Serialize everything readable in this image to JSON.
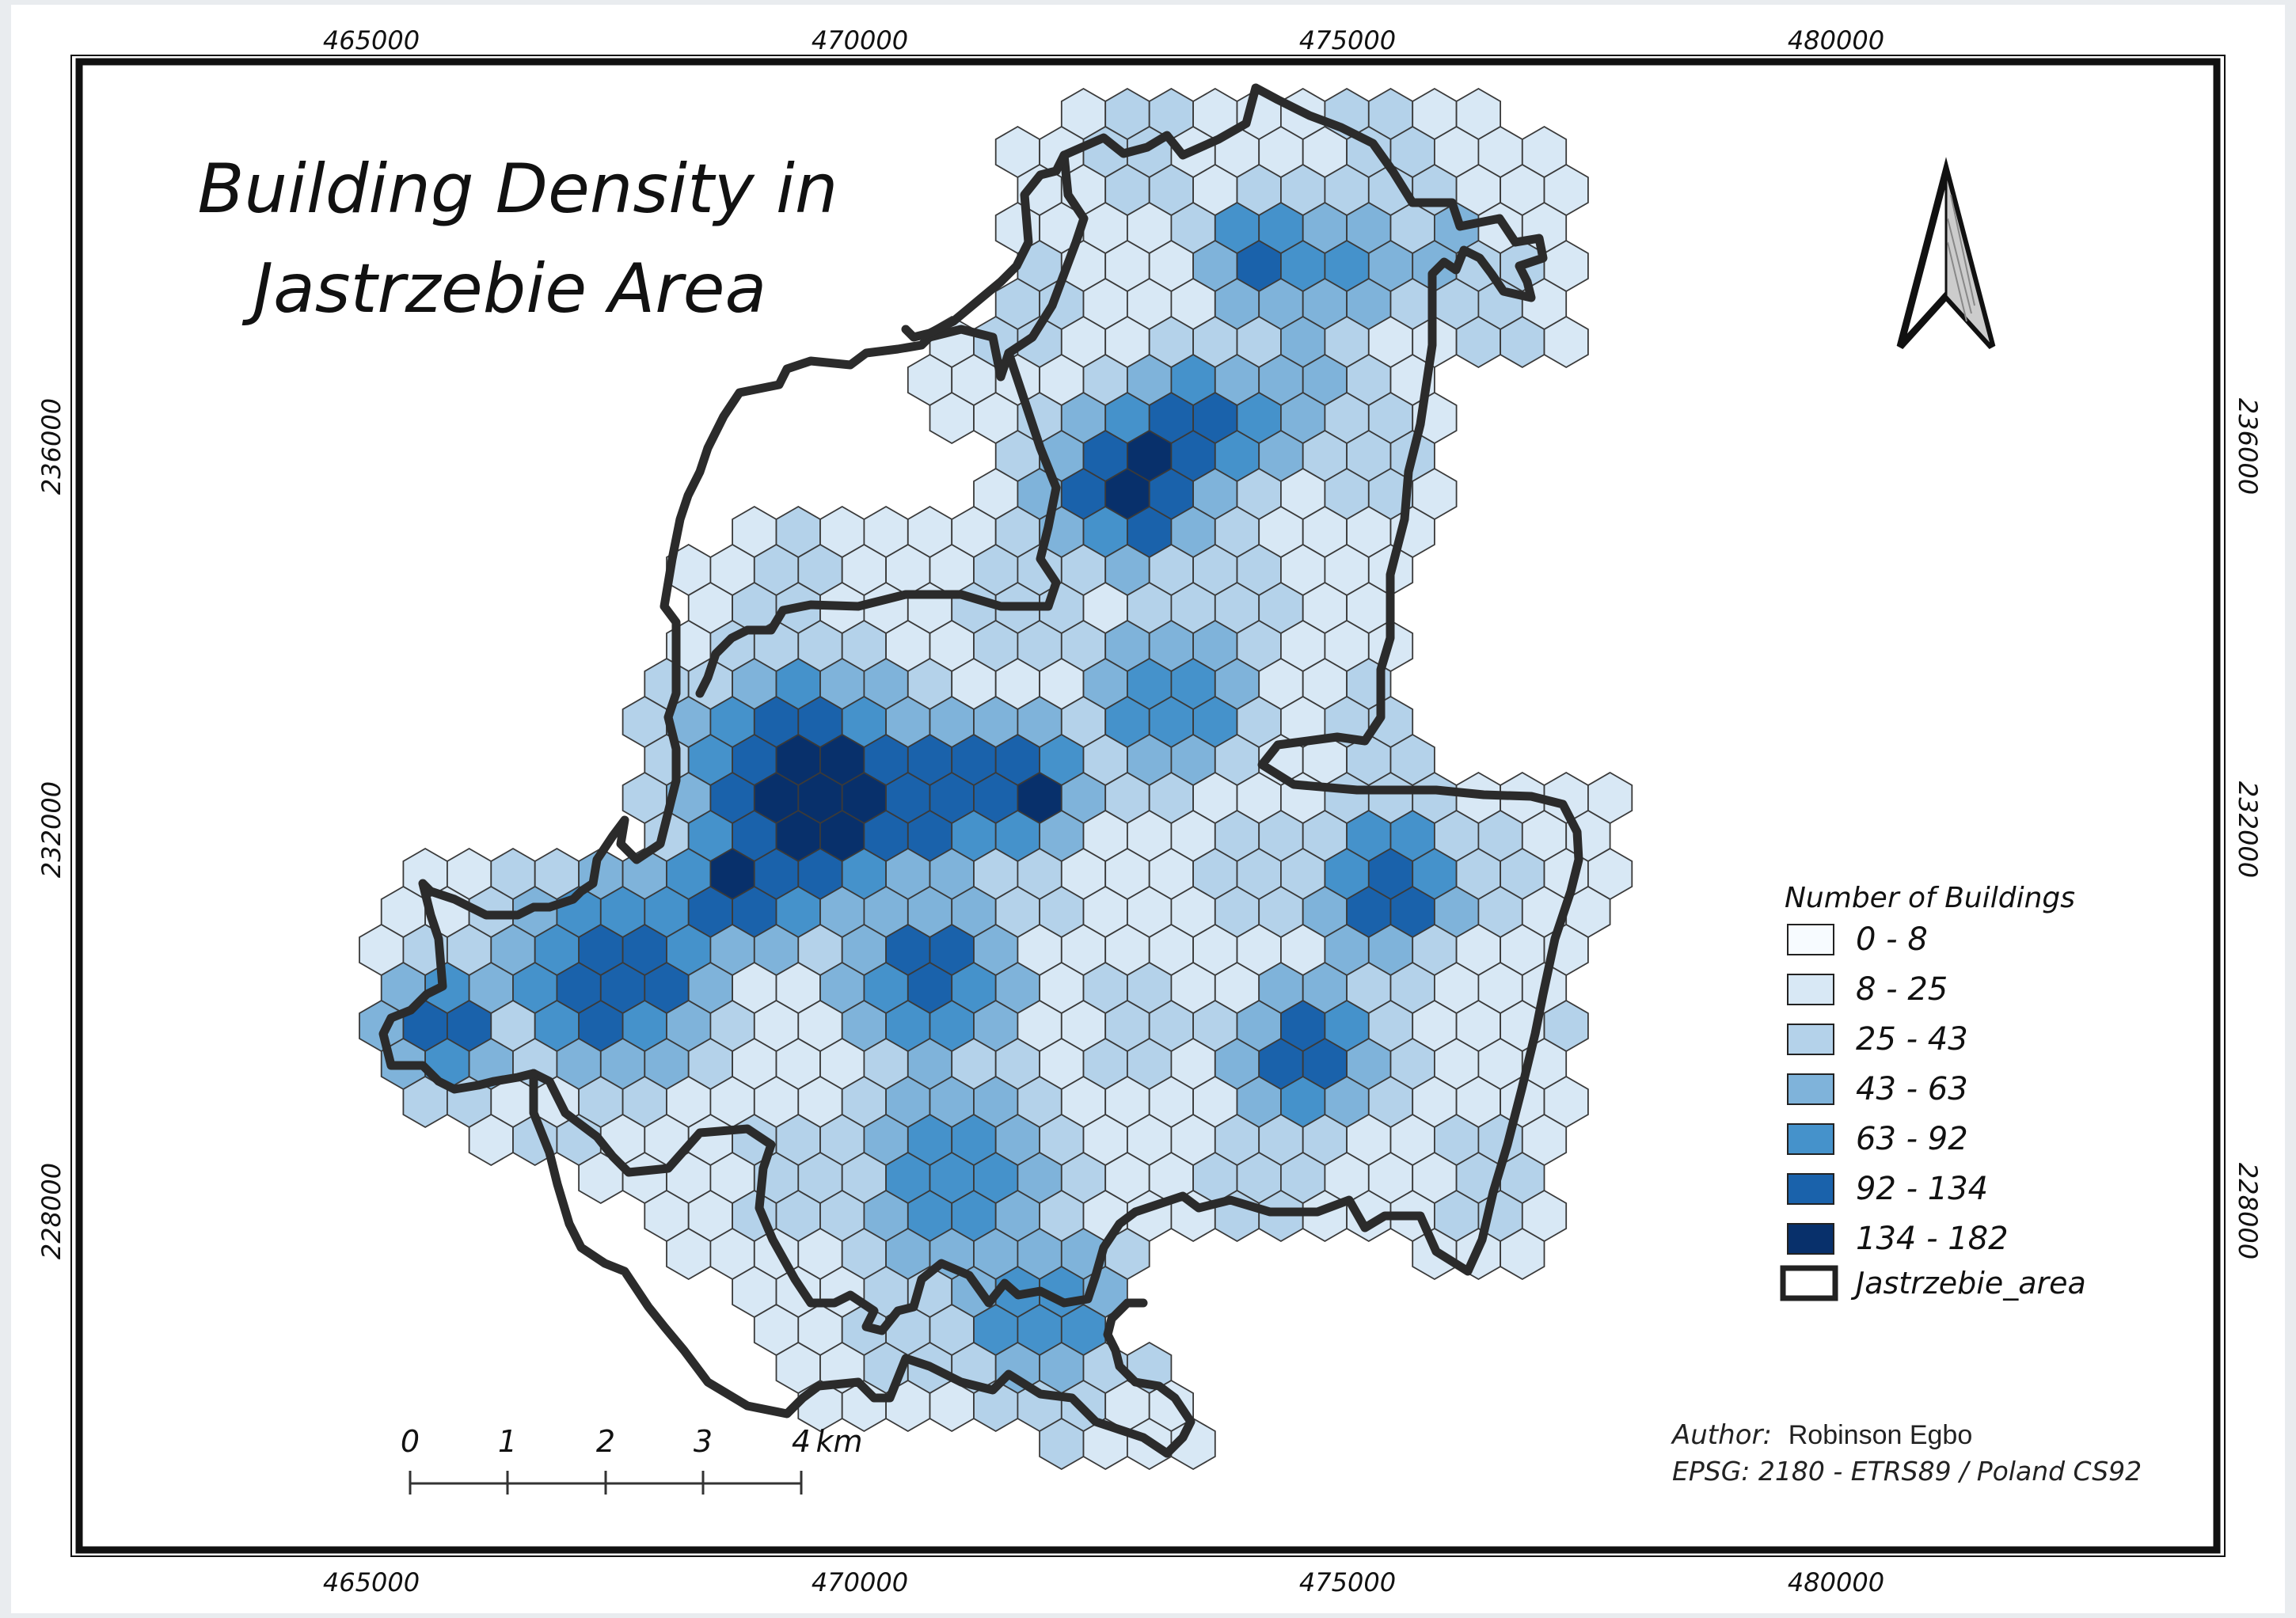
{
  "map": {
    "title_line1": "Building Density in",
    "title_line2": "Jastrzebie Area",
    "author_label": "Author:",
    "author_name": "Robinson Egbo",
    "crs": "EPSG: 2180 - ETRS89 / Poland CS92",
    "north_arrow": "north-arrow-icon"
  },
  "grid": {
    "x_ticks": [
      "465000",
      "470000",
      "475000",
      "480000"
    ],
    "y_ticks": [
      "236000",
      "232000",
      "228000"
    ]
  },
  "scale_bar": {
    "labels": [
      "0",
      "1",
      "2",
      "3",
      "4"
    ],
    "unit": "km"
  },
  "legend": {
    "title": "Number of Buildings",
    "classes": [
      {
        "label": "0 - 8",
        "color": "#f7fbff"
      },
      {
        "label": "8 - 25",
        "color": "#d8e8f5"
      },
      {
        "label": "25 - 43",
        "color": "#b4d2ea"
      },
      {
        "label": "43 - 63",
        "color": "#7fb3da"
      },
      {
        "label": "63 - 92",
        "color": "#4592cb"
      },
      {
        "label": "92 - 134",
        "color": "#1a62ab"
      },
      {
        "label": "134 - 182",
        "color": "#08306b"
      }
    ],
    "boundary_label": "Jastrzebie_area"
  }
}
